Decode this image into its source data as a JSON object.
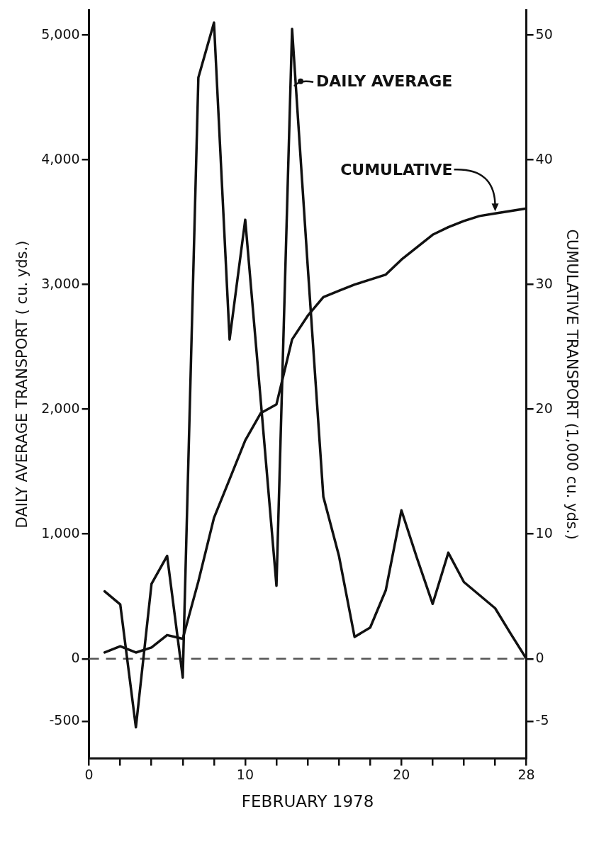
{
  "chart_data": {
    "type": "line",
    "xlabel": "FEBRUARY 1978",
    "ylabel": "DAILY AVERAGE TRANSPORT ( cu. yds.)",
    "y2label": "CUMULATIVE TRANSPORT (1,000 cu. yds.)",
    "x": [
      1,
      2,
      3,
      4,
      5,
      6,
      7,
      8,
      9,
      10,
      11,
      12,
      13,
      14,
      15,
      16,
      17,
      18,
      19,
      20,
      21,
      22,
      23,
      24,
      25,
      26,
      27,
      28
    ],
    "series": [
      {
        "name": "DAILY AVERAGE",
        "color": "#111111",
        "values": [
          540,
          435,
          -550,
          600,
          825,
          -150,
          4660,
          5100,
          2560,
          3520,
          2060,
          585,
          5050,
          3150,
          1300,
          825,
          175,
          250,
          550,
          1190,
          805,
          440,
          850,
          615,
          510,
          405,
          200,
          0
        ]
      },
      {
        "name": "CUMULATIVE",
        "color": "#111111",
        "axis": "y2",
        "values": [
          0.5,
          1.0,
          0.5,
          0.9,
          1.9,
          1.6,
          6.2,
          11.3,
          14.4,
          17.5,
          19.7,
          20.4,
          25.6,
          27.5,
          29.0,
          29.5,
          30.0,
          30.4,
          30.8,
          32.0,
          33.0,
          34.0,
          34.6,
          35.1,
          35.5,
          35.7,
          35.9,
          36.1
        ]
      }
    ],
    "xlim": [
      0,
      28
    ],
    "xticks": [
      0,
      {
        "value": 2,
        "label": null
      },
      {
        "value": 4,
        "label": null
      },
      {
        "value": 6,
        "label": null
      },
      {
        "value": 8,
        "label": null
      },
      10,
      {
        "value": 12,
        "label": null
      },
      {
        "value": 14,
        "label": null
      },
      {
        "value": 16,
        "label": null
      },
      {
        "value": 18,
        "label": null
      },
      20,
      {
        "value": 22,
        "label": null
      },
      {
        "value": 24,
        "label": null
      },
      {
        "value": 26,
        "label": null
      },
      28
    ],
    "ylim": [
      -800,
      5200
    ],
    "yticks": [
      {
        "value": -500,
        "label": "-500"
      },
      0,
      {
        "value": 1000,
        "label": "1,000"
      },
      {
        "value": 2000,
        "label": "2,000"
      },
      {
        "value": 3000,
        "label": "3,000"
      },
      {
        "value": 4000,
        "label": "4,000"
      },
      {
        "value": 5000,
        "label": "5,000"
      }
    ],
    "y2lim": [
      -8,
      52
    ],
    "y2ticks": [
      -5,
      0,
      10,
      20,
      30,
      40,
      50
    ],
    "ref_lines": [
      {
        "axis": "y",
        "value": 0,
        "line_style": "dashed",
        "color": "#555555"
      }
    ],
    "grid": false,
    "marker": "none",
    "line_style": "solid"
  }
}
